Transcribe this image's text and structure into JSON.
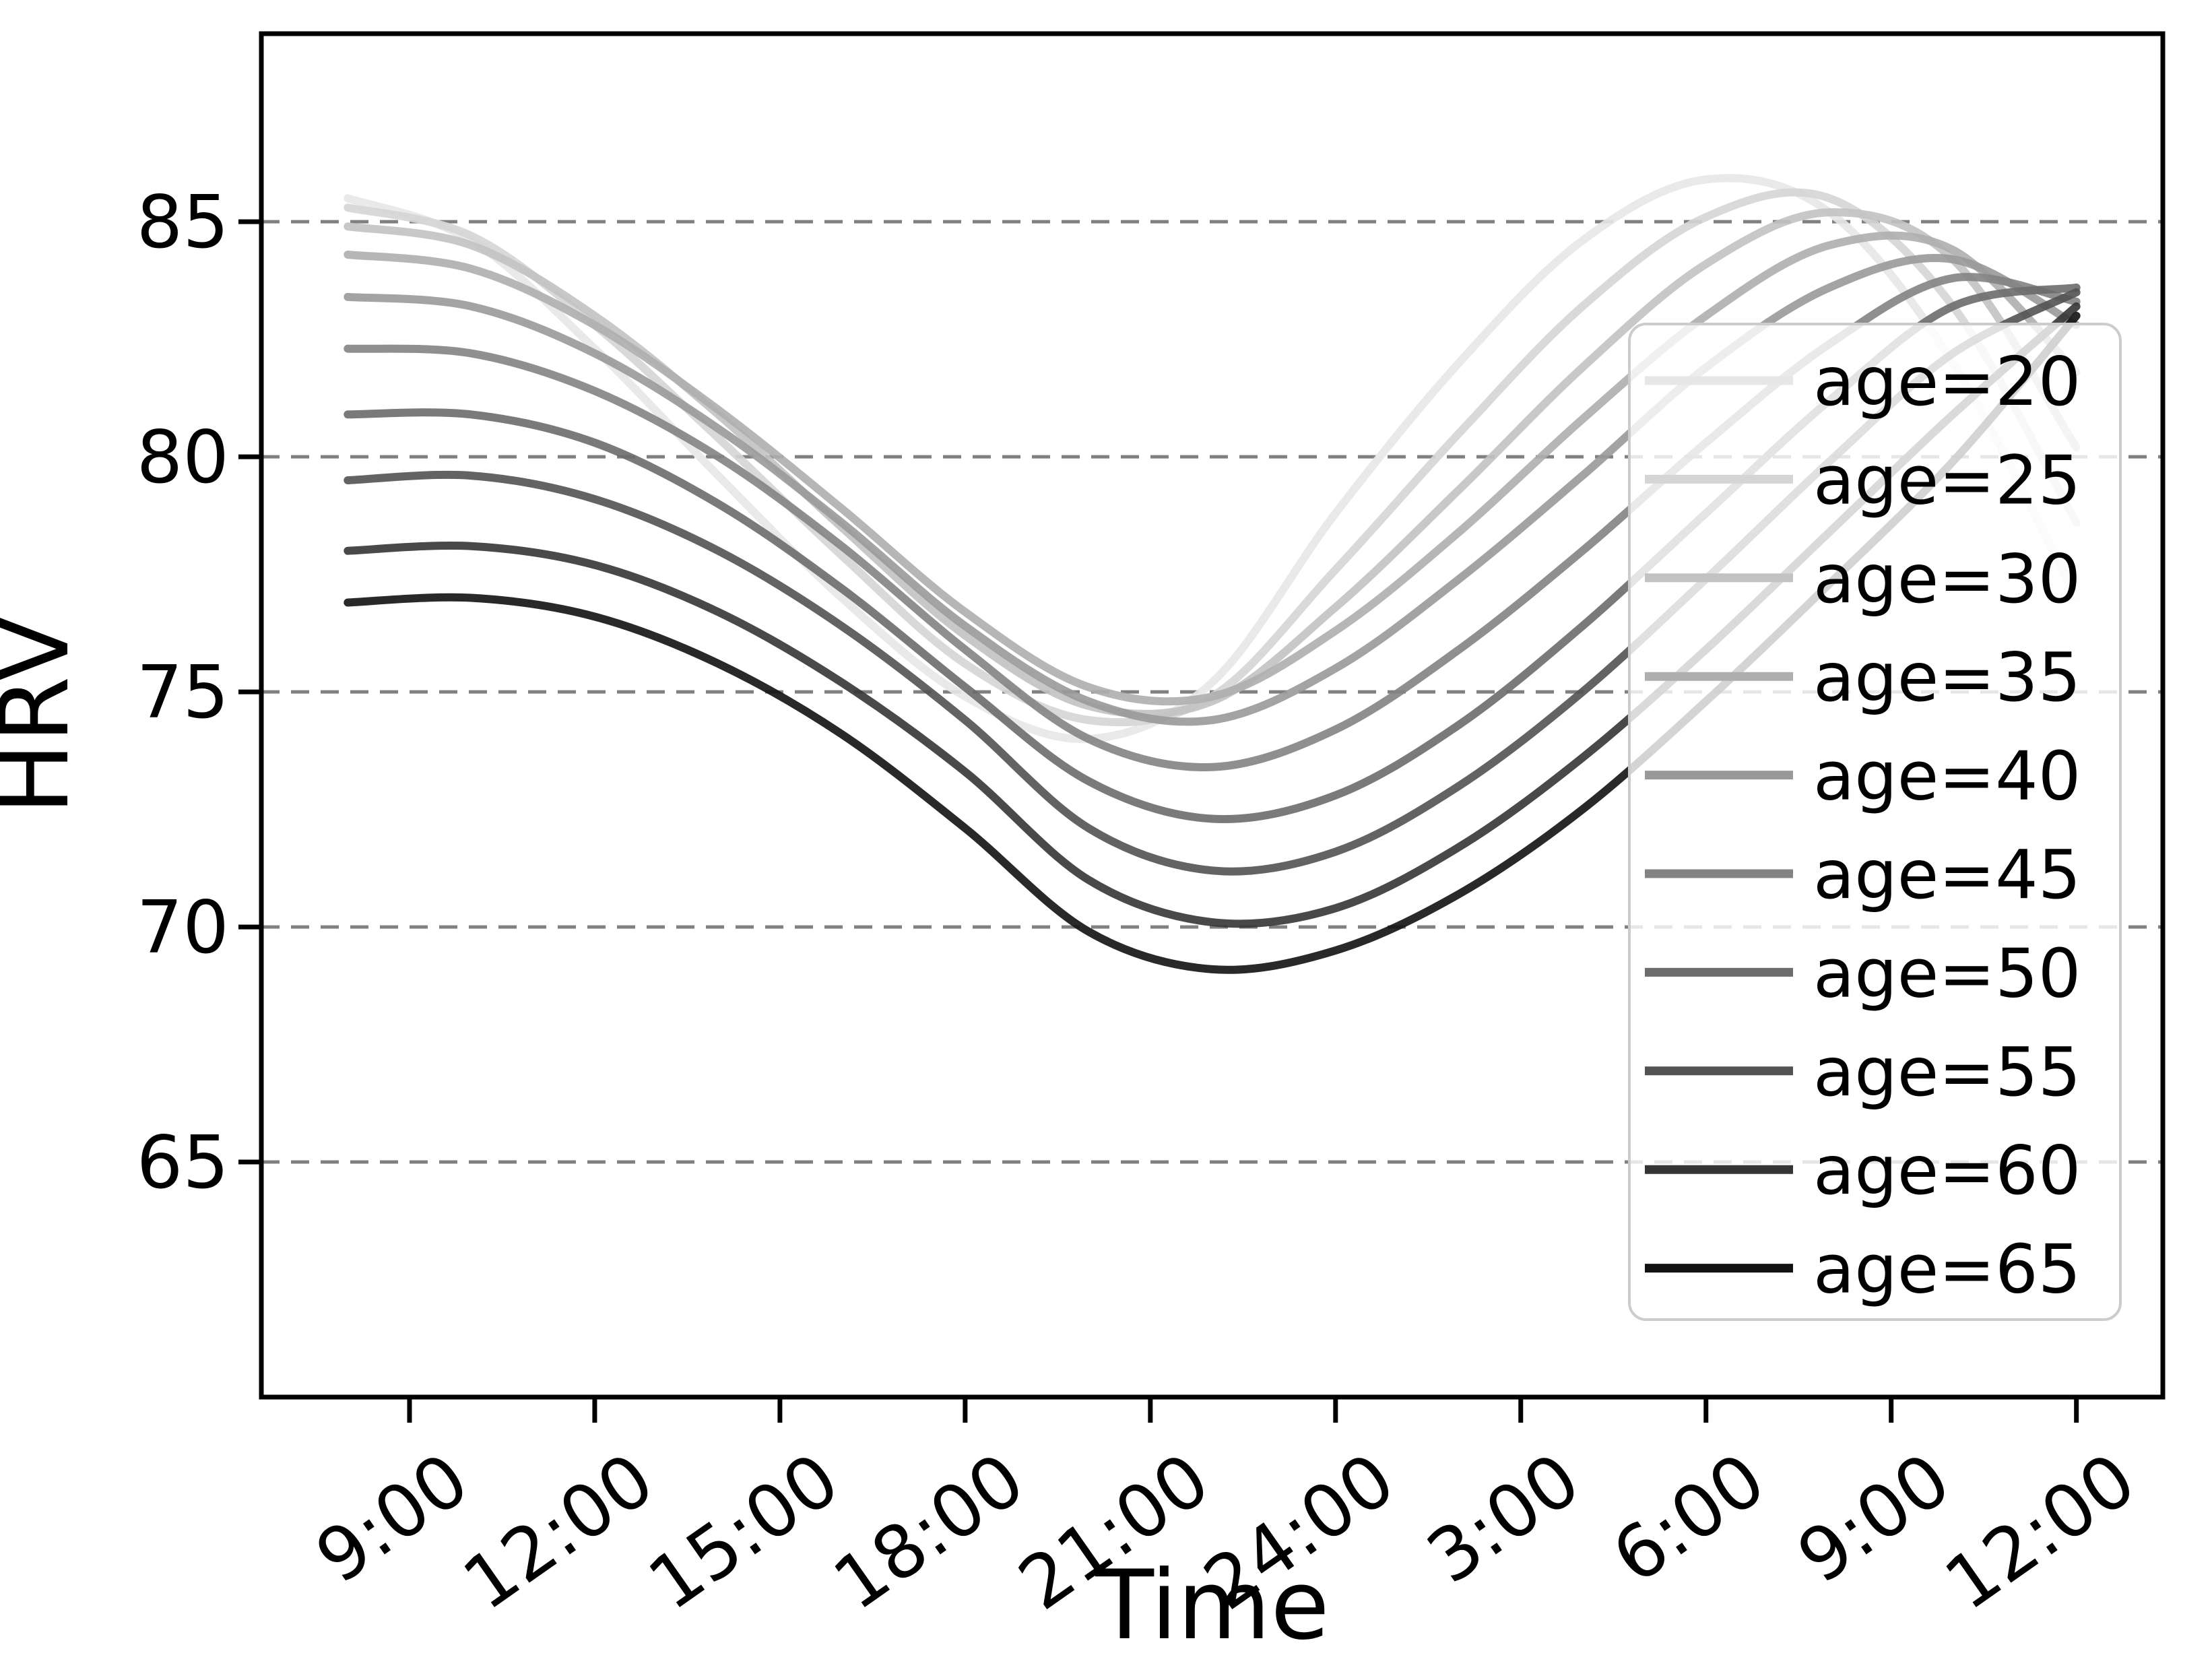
{
  "figure": {
    "background": "#ffffff",
    "xlabel": "Time",
    "ylabel": "HRV"
  },
  "chart_data": {
    "type": "line",
    "title": "",
    "xlabel": "Time",
    "ylabel": "HRV",
    "grid": "horizontal dashed",
    "grid_color": "#808080",
    "spine_color": "#000000",
    "legend_position": "center right",
    "legend_border_color": "#cccccc",
    "legend_background": "rgba(255,255,255,0.8)",
    "x_hours": [
      8,
      10,
      12,
      14,
      16,
      18,
      20,
      22,
      24,
      26,
      28,
      30,
      32,
      34,
      36
    ],
    "xlim": [
      6.6,
      37.4
    ],
    "ylim": [
      60,
      89
    ],
    "y_ticks": [
      65,
      70,
      75,
      80,
      85
    ],
    "x_ticks": [
      {
        "hour": 9,
        "label": "9:00"
      },
      {
        "hour": 12,
        "label": "12:00"
      },
      {
        "hour": 15,
        "label": "15:00"
      },
      {
        "hour": 18,
        "label": "18:00"
      },
      {
        "hour": 21,
        "label": "21:00"
      },
      {
        "hour": 24,
        "label": "24:00"
      },
      {
        "hour": 27,
        "label": "3:00"
      },
      {
        "hour": 30,
        "label": "6:00"
      },
      {
        "hour": 33,
        "label": "9:00"
      },
      {
        "hour": 36,
        "label": "12:00"
      }
    ],
    "series": [
      {
        "name": "age=20",
        "color": "#e7e7e7",
        "values": [
          85.5,
          84.6,
          82.3,
          79.6,
          77.0,
          74.9,
          74.0,
          75.2,
          78.8,
          82.0,
          84.6,
          85.9,
          85.2,
          82.0,
          77.0
        ]
      },
      {
        "name": "age=25",
        "color": "#d5d5d5",
        "values": [
          85.3,
          84.7,
          82.8,
          80.4,
          77.9,
          75.6,
          74.4,
          74.9,
          77.6,
          80.5,
          83.2,
          85.1,
          85.5,
          83.2,
          78.6
        ]
      },
      {
        "name": "age=30",
        "color": "#c2c2c2",
        "values": [
          84.9,
          84.5,
          83.0,
          80.9,
          78.5,
          76.2,
          74.7,
          74.8,
          76.8,
          79.3,
          81.9,
          84.1,
          85.2,
          84.2,
          80.2
        ]
      },
      {
        "name": "age=35",
        "color": "#aeaeae",
        "values": [
          84.3,
          84.0,
          82.8,
          81.0,
          78.9,
          76.7,
          75.1,
          74.9,
          76.3,
          78.4,
          80.8,
          83.0,
          84.5,
          84.4,
          81.8
        ]
      },
      {
        "name": "age=40",
        "color": "#999999",
        "values": [
          83.4,
          83.2,
          82.2,
          80.6,
          78.6,
          76.4,
          74.8,
          74.4,
          75.5,
          77.4,
          79.6,
          81.9,
          83.6,
          84.2,
          82.8
        ]
      },
      {
        "name": "age=45",
        "color": "#838383",
        "values": [
          82.3,
          82.2,
          81.4,
          80.0,
          78.1,
          75.9,
          74.0,
          73.4,
          74.2,
          75.9,
          78.0,
          80.3,
          82.4,
          83.8,
          83.3
        ]
      },
      {
        "name": "age=50",
        "color": "#6c6c6c",
        "values": [
          80.9,
          80.9,
          80.3,
          79.0,
          77.2,
          75.1,
          73.1,
          72.3,
          72.8,
          74.3,
          76.4,
          78.8,
          81.2,
          83.2,
          83.6
        ]
      },
      {
        "name": "age=55",
        "color": "#525252",
        "values": [
          79.5,
          79.6,
          79.1,
          78.0,
          76.4,
          74.4,
          72.1,
          71.2,
          71.6,
          73.0,
          75.0,
          77.4,
          79.9,
          82.2,
          83.5
        ]
      },
      {
        "name": "age=60",
        "color": "#353535",
        "values": [
          78.0,
          78.1,
          77.7,
          76.7,
          75.2,
          73.3,
          71.0,
          70.1,
          70.4,
          71.7,
          73.6,
          75.9,
          78.4,
          80.9,
          83.2
        ]
      },
      {
        "name": "age=65",
        "color": "#121212",
        "values": [
          76.9,
          77.0,
          76.6,
          75.6,
          74.1,
          72.1,
          69.9,
          69.1,
          69.5,
          70.7,
          72.5,
          74.8,
          77.3,
          79.9,
          83.0
        ]
      }
    ]
  }
}
